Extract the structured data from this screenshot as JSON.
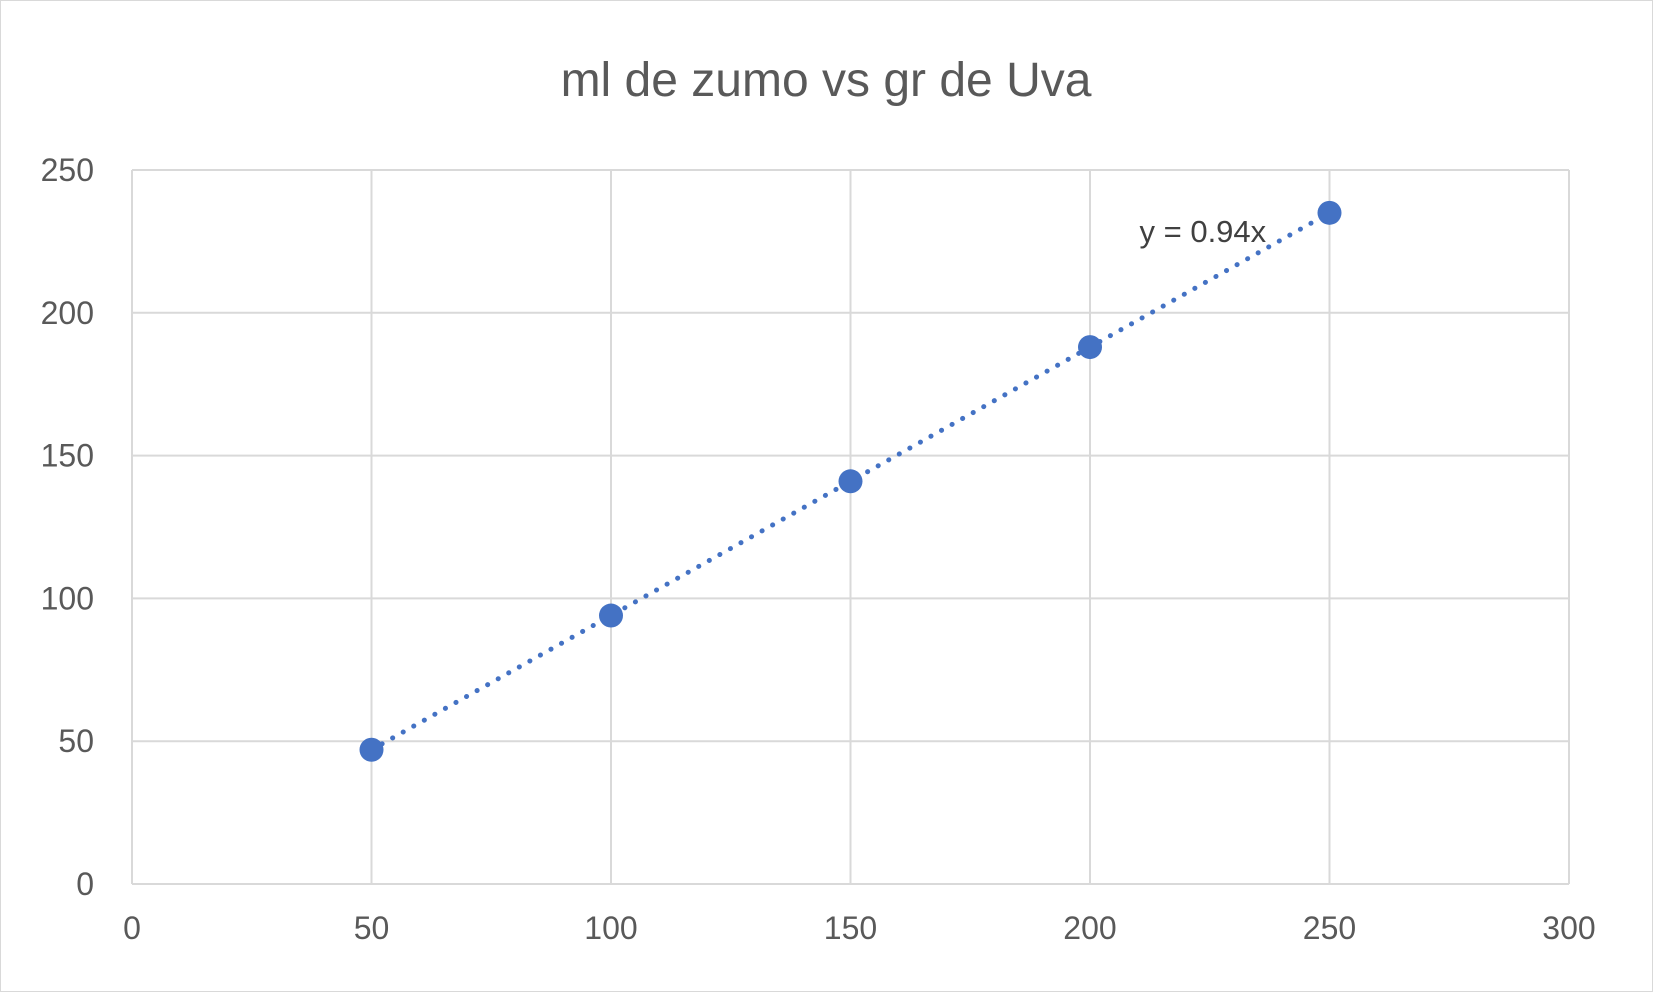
{
  "chart_data": {
    "type": "scatter",
    "title": "ml de zumo vs gr de Uva",
    "xlabel": "",
    "ylabel": "",
    "xlim": [
      0,
      300
    ],
    "ylim": [
      0,
      250
    ],
    "x_ticks": [
      "0",
      "50",
      "100",
      "150",
      "200",
      "250",
      "300"
    ],
    "y_ticks": [
      "0",
      "50",
      "100",
      "150",
      "200",
      "250"
    ],
    "grid": true,
    "legend": "none",
    "series": [
      {
        "x": [
          50,
          100,
          150,
          200,
          250
        ],
        "y": [
          47,
          94,
          141,
          188,
          235
        ],
        "color": "#4472c4"
      }
    ],
    "trendline": {
      "type": "linear",
      "style": "dotted",
      "slope": 0.94,
      "x_range": [
        50,
        250
      ],
      "color": "#4472c4",
      "equation_label": "y = 0.94x"
    }
  }
}
